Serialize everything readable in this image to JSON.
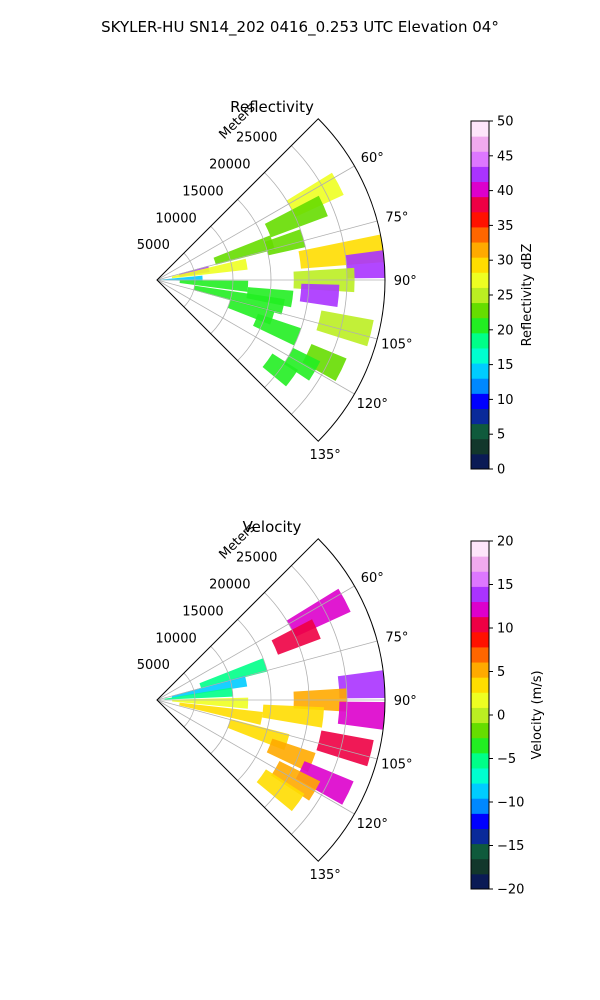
{
  "figure_title": "SKYLER-HU  SN14_202  0416_0.253 UTC Elevation 04°",
  "chart_data": [
    {
      "type": "heatmap",
      "subtype": "radar-ppi-sector",
      "title": "Reflectivity",
      "range_label": "Meters",
      "range_ticks": [
        5000,
        10000,
        15000,
        20000,
        25000
      ],
      "range_tick_labels": [
        "5000",
        "10000",
        "15000",
        "20000",
        "25000"
      ],
      "range_max": 30000,
      "azimuth_range_deg": [
        45,
        135
      ],
      "azimuth_ticks": [
        60,
        75,
        90,
        105,
        120,
        135
      ],
      "azimuth_tick_labels": [
        "60°",
        "75°",
        "90°",
        "105°",
        "120°",
        "135°"
      ],
      "grid": true,
      "colorbar": {
        "label": "Reflectivity dBZ",
        "min": 0,
        "max": 50,
        "ticks": [
          0,
          5,
          10,
          15,
          20,
          25,
          30,
          35,
          40,
          45,
          50
        ],
        "tick_labels": [
          "0",
          "5",
          "10",
          "15",
          "20",
          "25",
          "30",
          "35",
          "40",
          "45",
          "50"
        ],
        "colors": [
          "#0a1a55",
          "#12372b",
          "#0f5a3c",
          "#0a2a9a",
          "#0000ff",
          "#0088ff",
          "#00ccff",
          "#00ffd0",
          "#00ff88",
          "#22ee22",
          "#66dd00",
          "#bbee22",
          "#eeff22",
          "#ffdd00",
          "#ffaa00",
          "#ff6600",
          "#ff1100",
          "#ee0044",
          "#dd00cc",
          "#aa33ff",
          "#dd77ff",
          "#f0aaee",
          "#fde6fa"
        ]
      },
      "echoes": [
        {
          "az": 62,
          "r0": 20000,
          "r1": 27000,
          "value": 28
        },
        {
          "az": 66,
          "r0": 16000,
          "r1": 24000,
          "value": 22
        },
        {
          "az": 72,
          "r0": 8000,
          "r1": 16000,
          "value": 22
        },
        {
          "az": 74,
          "r0": 15000,
          "r1": 20000,
          "value": 22
        },
        {
          "az": 78,
          "r0": 3000,
          "r1": 7000,
          "value": 42
        },
        {
          "az": 80,
          "r0": 2000,
          "r1": 12000,
          "value": 28
        },
        {
          "az": 82,
          "r0": 19000,
          "r1": 30000,
          "value": 30
        },
        {
          "az": 86,
          "r0": 25000,
          "r1": 30000,
          "value": 42
        },
        {
          "az": 88,
          "r0": 0,
          "r1": 6000,
          "value": 14
        },
        {
          "az": 90,
          "r0": 18000,
          "r1": 26000,
          "value": 25
        },
        {
          "az": 94,
          "r0": 3000,
          "r1": 12000,
          "value": 20
        },
        {
          "az": 95,
          "r0": 19000,
          "r1": 24000,
          "value": 42
        },
        {
          "az": 98,
          "r0": 12000,
          "r1": 18000,
          "value": 20
        },
        {
          "az": 102,
          "r0": 5000,
          "r1": 17000,
          "value": 20
        },
        {
          "az": 104,
          "r0": 22000,
          "r1": 29000,
          "value": 25
        },
        {
          "az": 108,
          "r0": 10000,
          "r1": 16000,
          "value": 20
        },
        {
          "az": 112,
          "r0": 14000,
          "r1": 20000,
          "value": 20
        },
        {
          "az": 116,
          "r0": 22000,
          "r1": 27000,
          "value": 22
        },
        {
          "az": 120,
          "r0": 20000,
          "r1": 24000,
          "value": 20
        },
        {
          "az": 126,
          "r0": 18000,
          "r1": 22000,
          "value": 20
        }
      ]
    },
    {
      "type": "heatmap",
      "subtype": "radar-ppi-sector",
      "title": "Velocity",
      "range_label": "Meters",
      "range_ticks": [
        5000,
        10000,
        15000,
        20000,
        25000
      ],
      "range_tick_labels": [
        "5000",
        "10000",
        "15000",
        "20000",
        "25000"
      ],
      "range_max": 30000,
      "azimuth_range_deg": [
        45,
        135
      ],
      "azimuth_ticks": [
        60,
        75,
        90,
        105,
        120,
        135
      ],
      "azimuth_tick_labels": [
        "60°",
        "75°",
        "90°",
        "105°",
        "120°",
        "135°"
      ],
      "grid": true,
      "colorbar": {
        "label": "Velocity (m/s)",
        "min": -20,
        "max": 20,
        "ticks": [
          -20,
          -15,
          -10,
          -5,
          0,
          5,
          10,
          15,
          20
        ],
        "tick_labels": [
          "−20",
          "−15",
          "−10",
          "−5",
          "0",
          "5",
          "10",
          "15",
          "20"
        ],
        "colors": [
          "#0a1a55",
          "#12372b",
          "#0f5a3c",
          "#0a2a9a",
          "#0000ff",
          "#0088ff",
          "#00ccff",
          "#00ffd0",
          "#00ff88",
          "#22ee22",
          "#66dd00",
          "#bbee22",
          "#eeff22",
          "#ffdd00",
          "#ffaa00",
          "#ff6600",
          "#ff1100",
          "#ee0044",
          "#dd00cc",
          "#aa33ff",
          "#dd77ff",
          "#f0aaee",
          "#fde6fa"
        ]
      },
      "echoes": [
        {
          "az": 62,
          "r0": 20000,
          "r1": 28000,
          "value": 12
        },
        {
          "az": 66,
          "r0": 17000,
          "r1": 23000,
          "value": 10
        },
        {
          "az": 72,
          "r0": 6000,
          "r1": 15000,
          "value": -6
        },
        {
          "az": 78,
          "r0": 2000,
          "r1": 12000,
          "value": -9
        },
        {
          "az": 84,
          "r0": 1000,
          "r1": 10000,
          "value": -5
        },
        {
          "az": 86,
          "r0": 24000,
          "r1": 30000,
          "value": 14
        },
        {
          "az": 90,
          "r0": 18000,
          "r1": 25000,
          "value": 6
        },
        {
          "az": 92,
          "r0": 2000,
          "r1": 12000,
          "value": 1
        },
        {
          "az": 94,
          "r0": 24000,
          "r1": 30000,
          "value": 13
        },
        {
          "az": 96,
          "r0": 14000,
          "r1": 22000,
          "value": 4
        },
        {
          "az": 100,
          "r0": 3000,
          "r1": 14000,
          "value": 3
        },
        {
          "az": 104,
          "r0": 22000,
          "r1": 29000,
          "value": 11
        },
        {
          "az": 108,
          "r0": 10000,
          "r1": 18000,
          "value": 4
        },
        {
          "az": 112,
          "r0": 16000,
          "r1": 22000,
          "value": 6
        },
        {
          "az": 116,
          "r0": 21000,
          "r1": 28000,
          "value": 12
        },
        {
          "az": 120,
          "r0": 18000,
          "r1": 24000,
          "value": 5
        },
        {
          "az": 126,
          "r0": 17000,
          "r1": 23000,
          "value": 3
        }
      ]
    }
  ]
}
